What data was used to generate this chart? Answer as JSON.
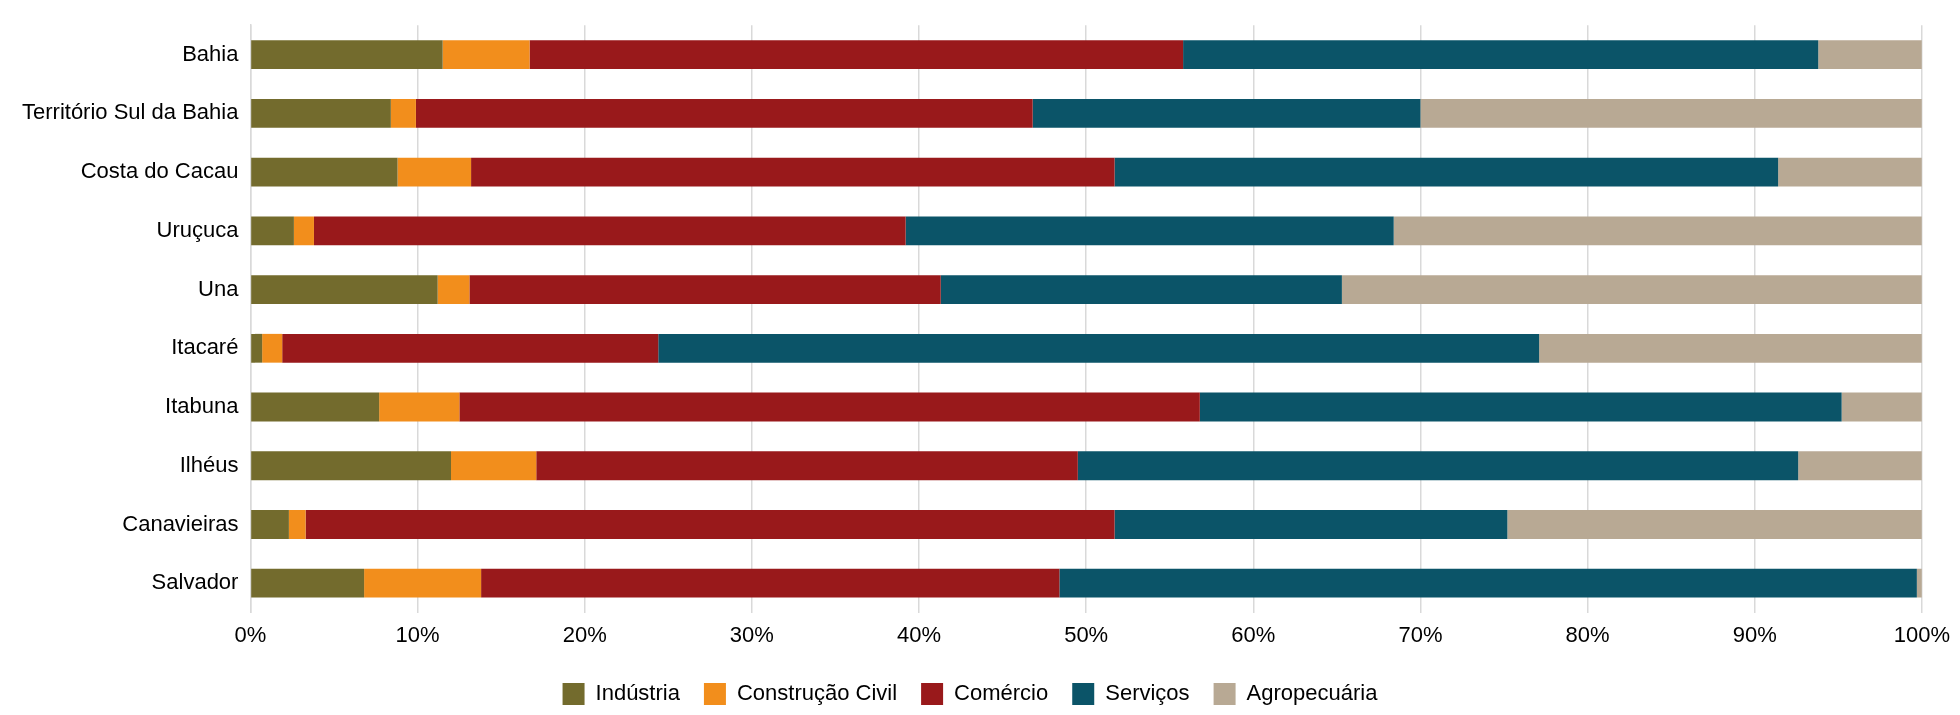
{
  "chart_data": {
    "type": "bar",
    "orientation": "horizontal",
    "stacked": true,
    "categories": [
      "Bahia",
      "Território Sul da Bahia",
      "Costa do Cacau",
      "Uruçuca",
      "Una",
      "Itacaré",
      "Itabuna",
      "Ilhéus",
      "Canavieiras",
      "Salvador"
    ],
    "series": [
      {
        "name": "Indústria",
        "color": "#736b2d",
        "values": [
          11.5,
          8.4,
          8.8,
          2.6,
          11.2,
          0.7,
          7.7,
          12.0,
          2.3,
          6.8
        ]
      },
      {
        "name": "Construção Civil",
        "color": "#f28e1c",
        "values": [
          5.2,
          1.5,
          4.4,
          1.2,
          1.9,
          1.2,
          4.8,
          5.1,
          1.0,
          7.0
        ]
      },
      {
        "name": "Comércio",
        "color": "#99191b",
        "values": [
          39.1,
          36.9,
          38.5,
          35.4,
          28.2,
          22.5,
          44.3,
          32.4,
          48.4,
          34.6
        ]
      },
      {
        "name": "Serviços",
        "color": "#0b5468",
        "values": [
          38.0,
          23.2,
          39.7,
          29.2,
          24.0,
          52.7,
          38.4,
          43.1,
          23.5,
          51.3
        ]
      },
      {
        "name": "Agropecuária",
        "color": "#b8a994",
        "values": [
          6.2,
          30.0,
          8.6,
          31.6,
          34.7,
          22.9,
          4.8,
          7.4,
          24.8,
          0.3
        ]
      }
    ],
    "xlim": [
      0,
      100
    ],
    "xticks": [
      {
        "value": 0,
        "label": "0%"
      },
      {
        "value": 10,
        "label": "10%"
      },
      {
        "value": 20,
        "label": "20%"
      },
      {
        "value": 30,
        "label": "30%"
      },
      {
        "value": 40,
        "label": "40%"
      },
      {
        "value": 50,
        "label": "50%"
      },
      {
        "value": 60,
        "label": "60%"
      },
      {
        "value": 70,
        "label": "70%"
      },
      {
        "value": 80,
        "label": "80%"
      },
      {
        "value": 90,
        "label": "90%"
      },
      {
        "value": 100,
        "label": "100%"
      }
    ],
    "grid": "x",
    "legend": "bottom"
  }
}
